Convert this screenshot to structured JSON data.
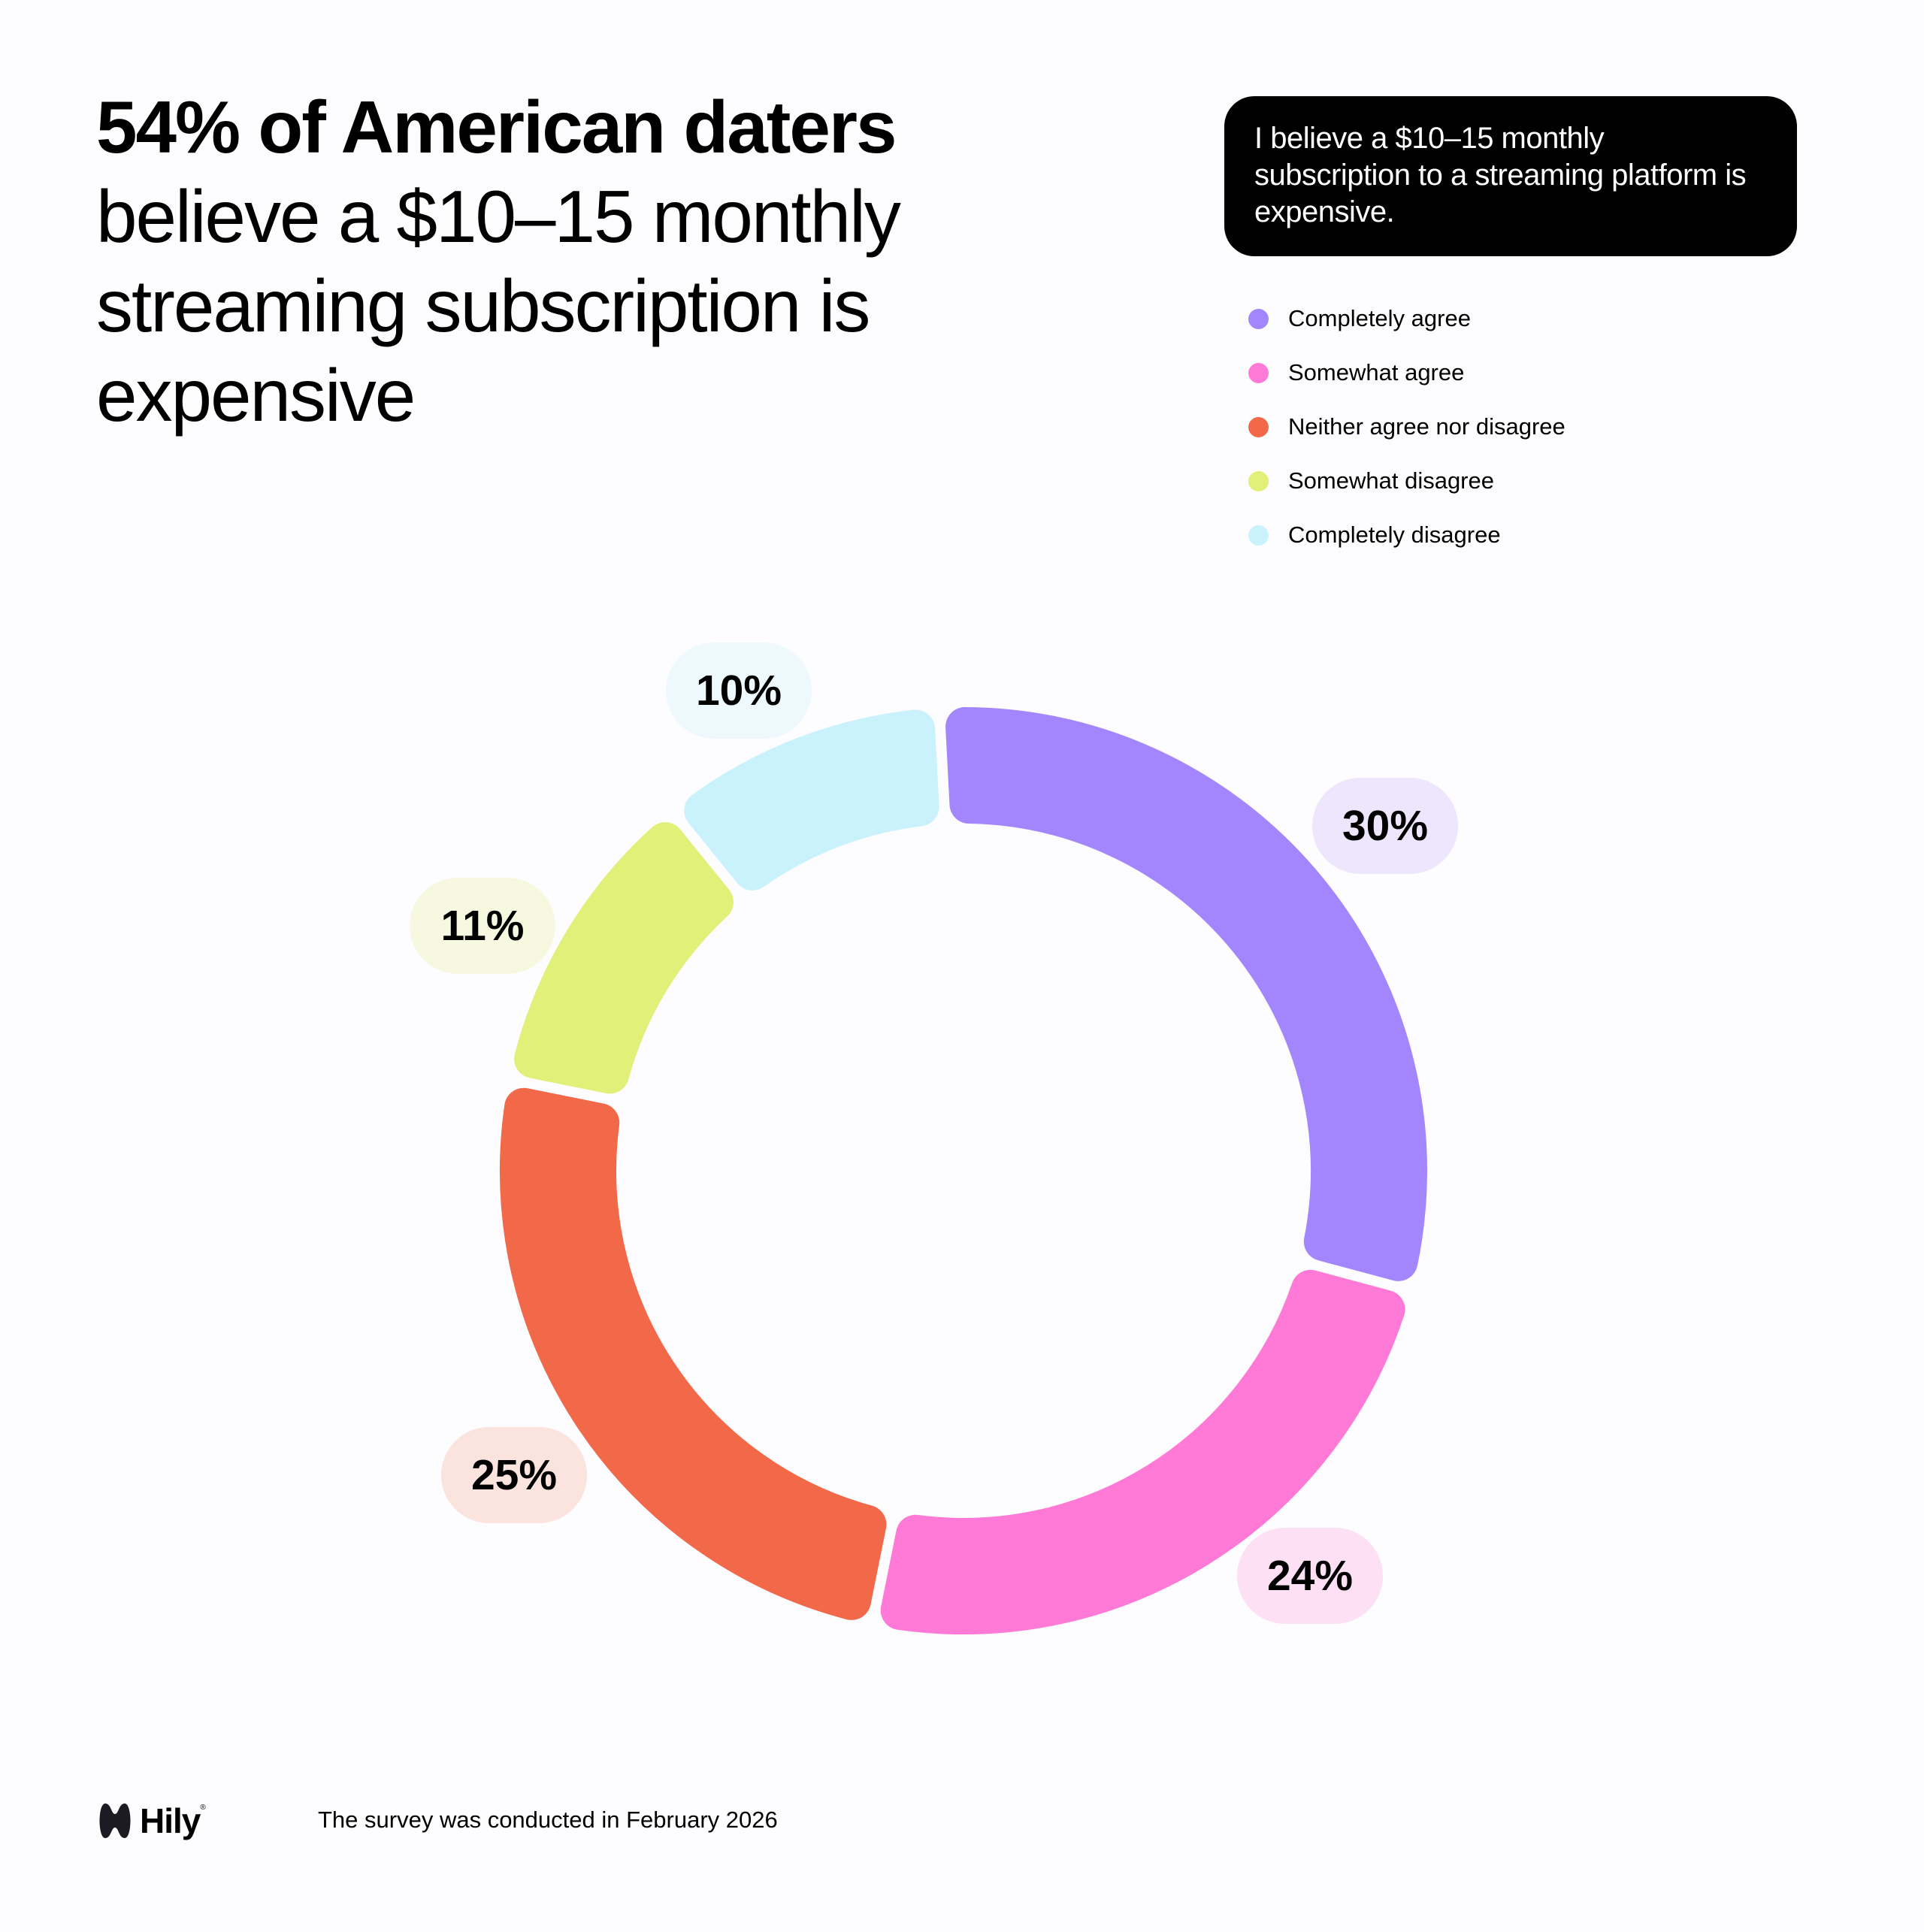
{
  "title": {
    "bold": "54% of American daters",
    "rest": "believe a $10–15 monthly streaming subscription is expensive"
  },
  "callout": "I believe a $10–15 monthly subscription to a streaming platform is expensive.",
  "footer": "The survey was conducted in February 2026",
  "logo": {
    "name": "Hily",
    "reg": "®"
  },
  "chart_data": {
    "type": "pie",
    "donut": true,
    "legend_position": "top-right",
    "categories": [
      "Completely agree",
      "Somewhat agree",
      "Neither agree nor disagree",
      "Somewhat disagree",
      "Completely disagree"
    ],
    "values": [
      30,
      24,
      25,
      11,
      10
    ],
    "labels": [
      "30%",
      "24%",
      "25%",
      "11%",
      "10%"
    ],
    "colors": [
      "#a385fe",
      "#ff7ad6",
      "#f2694a",
      "#e0f078",
      "#c9f2fc"
    ],
    "label_backgrounds": [
      "#ede6fd",
      "#fde0f4",
      "#fbe3de",
      "#f6f9e0",
      "#eef9fd"
    ]
  }
}
